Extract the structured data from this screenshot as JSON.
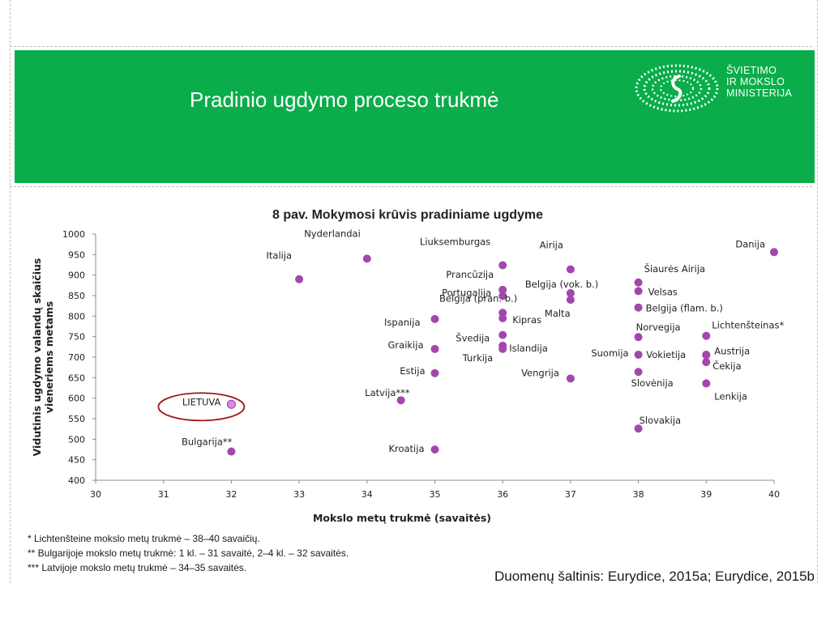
{
  "header": {
    "title": "Pradinio ugdymo proceso trukmė",
    "ministry_lines": [
      "ŠVIETIMO",
      "IR MOKSLO",
      "MINISTERIJA"
    ],
    "logo_icon": "ministry-emblem-icon",
    "color": "#0aad4a"
  },
  "chart_data": {
    "type": "scatter",
    "title": "8 pav. Mokymosi krūvis pradiniame ugdyme",
    "xlabel": "Mokslo metų trukmė (savaitės)",
    "ylabel_lines": [
      "Vidutinis ugdymo valandų skaičius",
      "vieneriems metams"
    ],
    "xlim": [
      30,
      40
    ],
    "ylim": [
      400,
      1000
    ],
    "xticks": [
      30,
      31,
      32,
      33,
      34,
      35,
      36,
      37,
      38,
      39,
      40
    ],
    "yticks": [
      400,
      450,
      500,
      550,
      600,
      650,
      700,
      750,
      800,
      850,
      900,
      950,
      1000
    ],
    "grid": false,
    "point_color": "#a347ad",
    "highlight_color": "#d98be0",
    "highlight_ring_color": "#a01818",
    "points": [
      {
        "label": "Nyderlandai",
        "x": 34,
        "y": 940
      },
      {
        "label": "Italija",
        "x": 33,
        "y": 890
      },
      {
        "label": "Liuksemburgas",
        "x": 36,
        "y": 924
      },
      {
        "label": "Prancūzija",
        "x": 36,
        "y": 864
      },
      {
        "label": "Belgija (pran. b.)",
        "x": 36,
        "y": 849
      },
      {
        "label": "Portugalija",
        "x": 36,
        "y": 808
      },
      {
        "label": "Kipras",
        "x": 36,
        "y": 795
      },
      {
        "label": "Švedija",
        "x": 36,
        "y": 754
      },
      {
        "label": "Turkija",
        "x": 36,
        "y": 728
      },
      {
        "label": "Islandija",
        "x": 36,
        "y": 720
      },
      {
        "label": "Airija",
        "x": 37,
        "y": 914
      },
      {
        "label": "Belgija (vok. b.)",
        "x": 37,
        "y": 856
      },
      {
        "label": "Malta",
        "x": 37,
        "y": 840
      },
      {
        "label": "Vengrija",
        "x": 37,
        "y": 648
      },
      {
        "label": "Šiaurės Airija",
        "x": 38,
        "y": 882
      },
      {
        "label": "Velsas",
        "x": 38,
        "y": 861
      },
      {
        "label": "Belgija (flam. b.)",
        "x": 38,
        "y": 821
      },
      {
        "label": "Norvegija",
        "x": 38,
        "y": 749
      },
      {
        "label": "Suomija",
        "x": 38,
        "y": 706
      },
      {
        "label": "Slovėnija",
        "x": 38,
        "y": 664
      },
      {
        "label": "Slovakija",
        "x": 38,
        "y": 526
      },
      {
        "label": "Danija",
        "x": 40,
        "y": 956
      },
      {
        "label": "Lichtenšteinas*",
        "x": 39,
        "y": 752
      },
      {
        "label": "Vokietija",
        "x": 39,
        "y": 706
      },
      {
        "label": "Austrija",
        "x": 39,
        "y": 705
      },
      {
        "label": "Čekija",
        "x": 39,
        "y": 688
      },
      {
        "label": "Lenkija",
        "x": 39,
        "y": 636
      },
      {
        "label": "Ispanija",
        "x": 35,
        "y": 793
      },
      {
        "label": "Graikija",
        "x": 35,
        "y": 720
      },
      {
        "label": "Estija",
        "x": 35,
        "y": 661
      },
      {
        "label": "Latvija***",
        "x": 34.5,
        "y": 595
      },
      {
        "label": "Kroatija",
        "x": 35,
        "y": 475
      },
      {
        "label": "Bulgarija**",
        "x": 32,
        "y": 470
      },
      {
        "label": "LIETUVA",
        "x": 32,
        "y": 585,
        "highlight": true
      }
    ]
  },
  "footnotes": [
    "* Lichtenšteine mokslo metų trukmė – 38–40 savaičių.",
    "** Bulgarijoje mokslo metų trukmė: 1 kl. – 31 savaitė, 2–4 kl. – 32 savaitės.",
    "*** Latvijoje mokslo metų trukmė – 34–35 savaitės."
  ],
  "source": "Duomenų šaltinis: Eurydice, 2015a; Eurydice, 2015b"
}
